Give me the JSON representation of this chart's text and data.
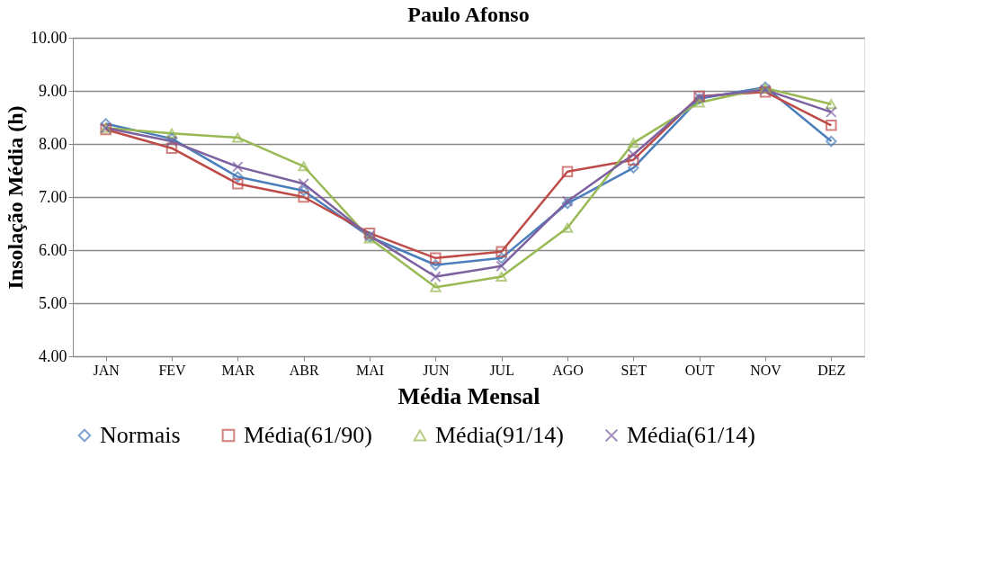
{
  "chart_data": {
    "type": "line",
    "title": "Paulo Afonso",
    "xlabel": "Média Mensal",
    "ylabel": "Insolação Média (h)",
    "categories": [
      "JAN",
      "FEV",
      "MAR",
      "ABR",
      "MAI",
      "JUN",
      "JUL",
      "AGO",
      "SET",
      "OUT",
      "NOV",
      "DEZ"
    ],
    "series": [
      {
        "name": "Normais",
        "color": "#4a7ebb",
        "marker": "diamond",
        "values": [
          8.38,
          8.1,
          7.38,
          7.12,
          6.25,
          5.72,
          5.85,
          6.88,
          7.55,
          8.85,
          9.07,
          8.05
        ]
      },
      {
        "name": "Média(61/90)",
        "color": "#be4b48",
        "marker": "square",
        "values": [
          8.27,
          7.92,
          7.25,
          7.0,
          6.32,
          5.85,
          5.97,
          7.48,
          7.7,
          8.9,
          8.98,
          8.35
        ]
      },
      {
        "name": "Média(91/14)",
        "color": "#98b954",
        "marker": "triangle",
        "values": [
          8.3,
          8.2,
          8.12,
          7.58,
          6.22,
          5.3,
          5.5,
          6.42,
          8.02,
          8.78,
          9.05,
          8.75
        ]
      },
      {
        "name": "Média(61/14)",
        "color": "#7d60a0",
        "marker": "cross",
        "values": [
          8.3,
          8.05,
          7.57,
          7.25,
          6.27,
          5.5,
          5.7,
          6.92,
          7.8,
          8.88,
          9.02,
          8.6
        ]
      }
    ],
    "ylim": [
      4,
      10
    ],
    "yticks": [
      {
        "value": 4,
        "label": "4.00"
      },
      {
        "value": 5,
        "label": "5.00"
      },
      {
        "value": 6,
        "label": "6.00"
      },
      {
        "value": 7,
        "label": "7.00"
      },
      {
        "value": 8,
        "label": "8.00"
      },
      {
        "value": 9,
        "label": "9.00"
      },
      {
        "value": 10,
        "label": "10.00"
      }
    ],
    "grid": "y",
    "legend": "bottom"
  }
}
